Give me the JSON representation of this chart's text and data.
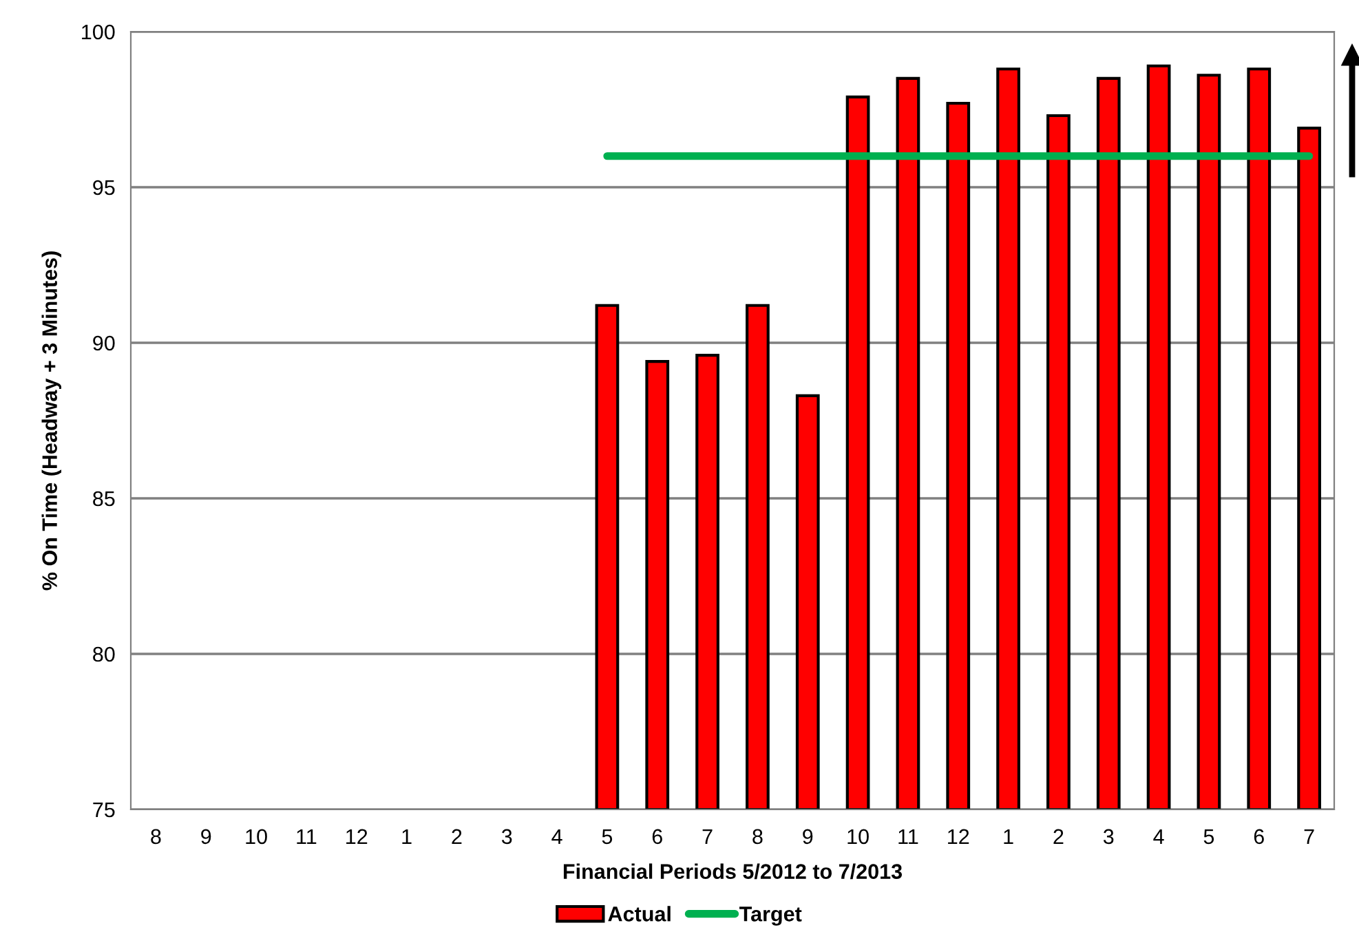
{
  "chart_data": {
    "type": "bar",
    "xlabel": "Financial Periods 5/2012 to 7/2013",
    "ylabel": "% On Time (Headway + 3 Minutes)",
    "categories": [
      "8",
      "9",
      "10",
      "11",
      "12",
      "1",
      "2",
      "3",
      "4",
      "5",
      "6",
      "7",
      "8",
      "9",
      "10",
      "11",
      "12",
      "1",
      "2",
      "3",
      "4",
      "5",
      "6",
      "7"
    ],
    "series": [
      {
        "name": "Actual",
        "color": "#ff0000",
        "values": [
          null,
          null,
          null,
          null,
          null,
          null,
          null,
          null,
          null,
          91.2,
          89.4,
          89.6,
          91.2,
          88.3,
          97.9,
          98.5,
          97.7,
          98.8,
          97.3,
          98.5,
          98.9,
          98.6,
          98.8,
          96.9
        ]
      },
      {
        "name": "Target",
        "type": "line",
        "color": "#00b050",
        "values": [
          null,
          null,
          null,
          null,
          null,
          null,
          null,
          null,
          null,
          96,
          96,
          96,
          96,
          96,
          96,
          96,
          96,
          96,
          96,
          96,
          96,
          96,
          96,
          96
        ]
      }
    ],
    "ylim": [
      75,
      100
    ],
    "yticks": [
      75,
      80,
      85,
      90,
      95,
      100
    ],
    "grid": "y",
    "legend": "bottom",
    "marker": "none"
  }
}
